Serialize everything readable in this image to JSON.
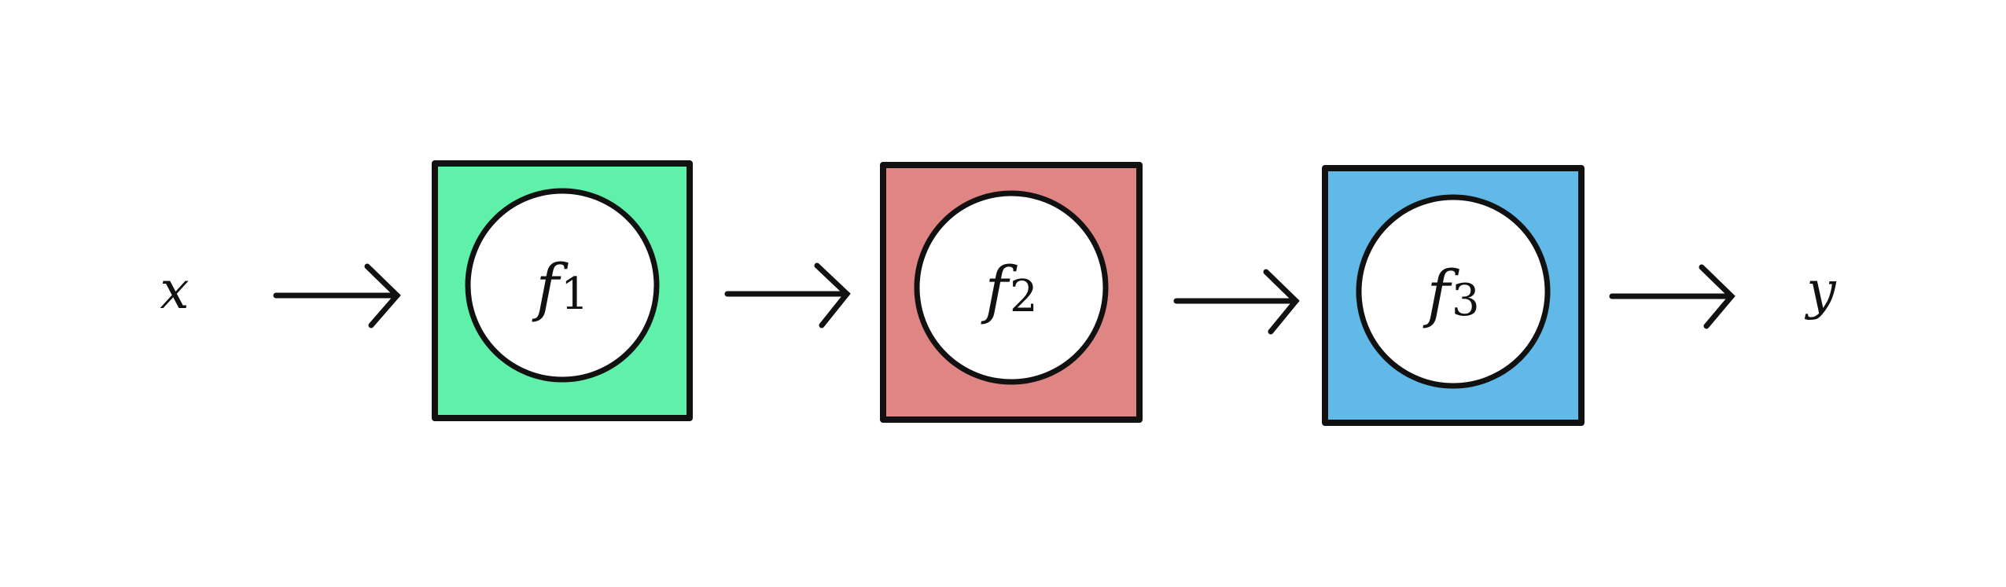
{
  "diagram": {
    "input_label": "x",
    "output_label": "y",
    "blocks": [
      {
        "name": "f",
        "subscript": "1",
        "fill": "#5FF0AA"
      },
      {
        "name": "f",
        "subscript": "2",
        "fill": "#DF8584"
      },
      {
        "name": "f",
        "subscript": "3",
        "fill": "#60B9E7"
      }
    ],
    "stroke_color": "#111111"
  }
}
